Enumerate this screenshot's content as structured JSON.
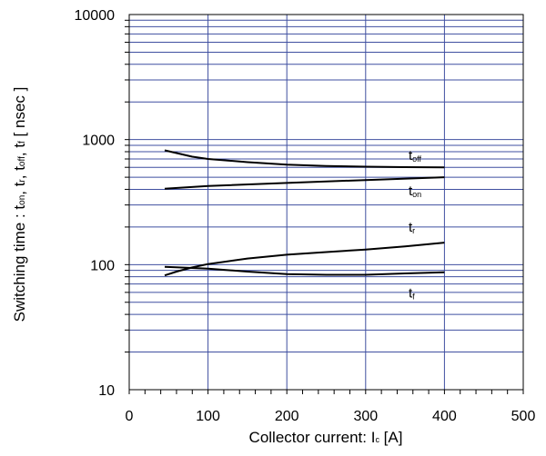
{
  "chart_data": {
    "type": "line",
    "xlabel": "Collector current: I",
    "xlabel_sub": "c",
    "xlabel_unit": " [A]",
    "ylabel_parts": [
      {
        "t": "Switching time  :  t"
      },
      {
        "t": "on",
        "sub": true
      },
      {
        "t": ", t"
      },
      {
        "t": "r",
        "sub": true
      },
      {
        "t": ", t"
      },
      {
        "t": "off",
        "sub": true
      },
      {
        "t": ", t"
      },
      {
        "t": "f",
        "sub": true
      },
      {
        "t": "  [ nsec ]"
      }
    ],
    "x_ticks": [
      "0",
      "100",
      "200",
      "300",
      "400",
      "500"
    ],
    "y_ticks": [
      "10",
      "100",
      "1000",
      "10000"
    ],
    "xlim": [
      0,
      500
    ],
    "ylim": [
      10,
      10000
    ],
    "y_scale": "log",
    "grid": true,
    "series": [
      {
        "name": "t",
        "name_sub": "off",
        "x": [
          45,
          60,
          80,
          100,
          150,
          200,
          250,
          300,
          350,
          400
        ],
        "values": [
          820,
          780,
          730,
          700,
          660,
          630,
          615,
          607,
          602,
          600
        ]
      },
      {
        "name": "t",
        "name_sub": "on",
        "x": [
          45,
          100,
          200,
          300,
          400
        ],
        "values": [
          405,
          425,
          450,
          475,
          500
        ]
      },
      {
        "name": "t",
        "name_sub": "r",
        "x": [
          45,
          60,
          80,
          100,
          150,
          200,
          250,
          300,
          350,
          400
        ],
        "values": [
          82,
          88,
          95,
          101,
          112,
          120,
          126,
          132,
          140,
          150
        ]
      },
      {
        "name": "t",
        "name_sub": "f",
        "x": [
          45,
          80,
          100,
          150,
          200,
          250,
          300,
          350,
          400
        ],
        "values": [
          96,
          94,
          93,
          88,
          84,
          83,
          83,
          85,
          87
        ]
      }
    ]
  }
}
